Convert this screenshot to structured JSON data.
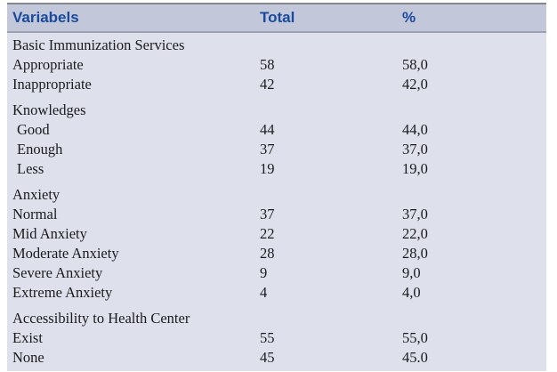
{
  "table": {
    "columns": [
      "Variabels",
      "Total",
      "%"
    ],
    "rows": [
      {
        "label": "Basic Immunization Services",
        "total": "",
        "pct": ""
      },
      {
        "label": "Appropriate",
        "total": "58",
        "pct": "58,0"
      },
      {
        "label": "Inappropriate",
        "total": "42",
        "pct": "42,0"
      },
      {
        "label": "Knowledges",
        "total": "",
        "pct": ""
      },
      {
        "label": "Good",
        "total": "44",
        "pct": "44,0"
      },
      {
        "label": "Enough",
        "total": "37",
        "pct": "37,0"
      },
      {
        "label": "Less",
        "total": "19",
        "pct": "19,0"
      },
      {
        "label": "Anxiety",
        "total": "",
        "pct": ""
      },
      {
        "label": "Normal",
        "total": "37",
        "pct": "37,0"
      },
      {
        "label": "Mid Anxiety",
        "total": "22",
        "pct": "22,0"
      },
      {
        "label": "Moderate Anxiety",
        "total": "28",
        "pct": "28,0"
      },
      {
        "label": "Severe Anxiety",
        "total": "9",
        "pct": "9,0"
      },
      {
        "label": "Extreme Anxiety",
        "total": "4",
        "pct": "4,0"
      },
      {
        "label": "Accessibility to Health Center",
        "total": "",
        "pct": ""
      },
      {
        "label": "Exist",
        "total": "55",
        "pct": "55,0"
      },
      {
        "label": "None",
        "total": "45",
        "pct": "45.0"
      }
    ]
  },
  "colors": {
    "header_bg": "#c3c7da",
    "body_bg": "#dee1ec",
    "header_text": "#1a4a9c",
    "top_rule": "#85868c",
    "header_divider": "#9ea1b5",
    "body_text": "#1b1b1d"
  }
}
